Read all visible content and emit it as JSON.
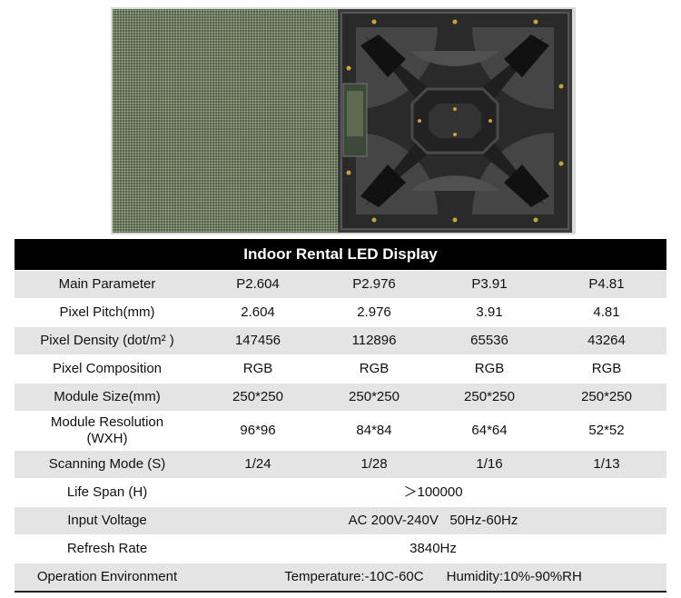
{
  "table": {
    "title": "Indoor Rental LED Display",
    "rows": [
      {
        "label": "Main Parameter",
        "cells": [
          "P2.604",
          "P2.976",
          "P3.91",
          "P4.81"
        ]
      },
      {
        "label": "Pixel Pitch(mm)",
        "cells": [
          "2.604",
          "2.976",
          "3.91",
          "4.81"
        ]
      },
      {
        "label": "Pixel Density (dot/m² )",
        "cells": [
          "147456",
          "112896",
          "65536",
          "43264"
        ]
      },
      {
        "label": "Pixel Composition",
        "cells": [
          "RGB",
          "RGB",
          "RGB",
          "RGB"
        ]
      },
      {
        "label": "Module Size(mm)",
        "cells": [
          "250*250",
          "250*250",
          "250*250",
          "250*250"
        ]
      },
      {
        "label_line1": "Module Resolution",
        "label_line2": "(WXH)",
        "cells": [
          "96*96",
          "84*84",
          "64*64",
          "52*52"
        ]
      },
      {
        "label": "Scanning Mode (S)",
        "cells": [
          "1/24",
          "1/28",
          "1/16",
          "1/13"
        ]
      },
      {
        "label": "Life Span (H)",
        "value": "＞100000"
      },
      {
        "label": "Input Voltage",
        "value": "AC 200V-240V   50Hz-60Hz"
      },
      {
        "label": "Refresh Rate",
        "value": "3840Hz"
      },
      {
        "label": "Operation Environment",
        "value": "Temperature:-10C-60C      Humidity:10%-90%RH"
      }
    ]
  }
}
